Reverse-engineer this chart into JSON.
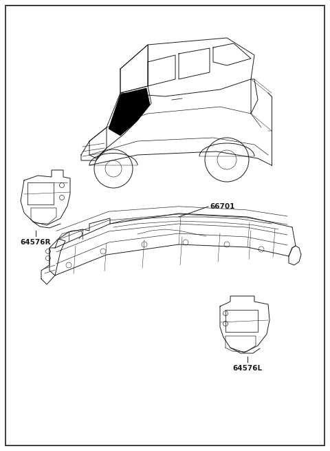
{
  "bg_color": "#ffffff",
  "border_color": "#1a1a1a",
  "text_color": "#1a1a1a",
  "label_64576R": "64576R",
  "label_64576L": "64576L",
  "label_66701": "66701",
  "fig_width": 4.8,
  "fig_height": 6.55,
  "dpi": 100,
  "lw": 0.7
}
